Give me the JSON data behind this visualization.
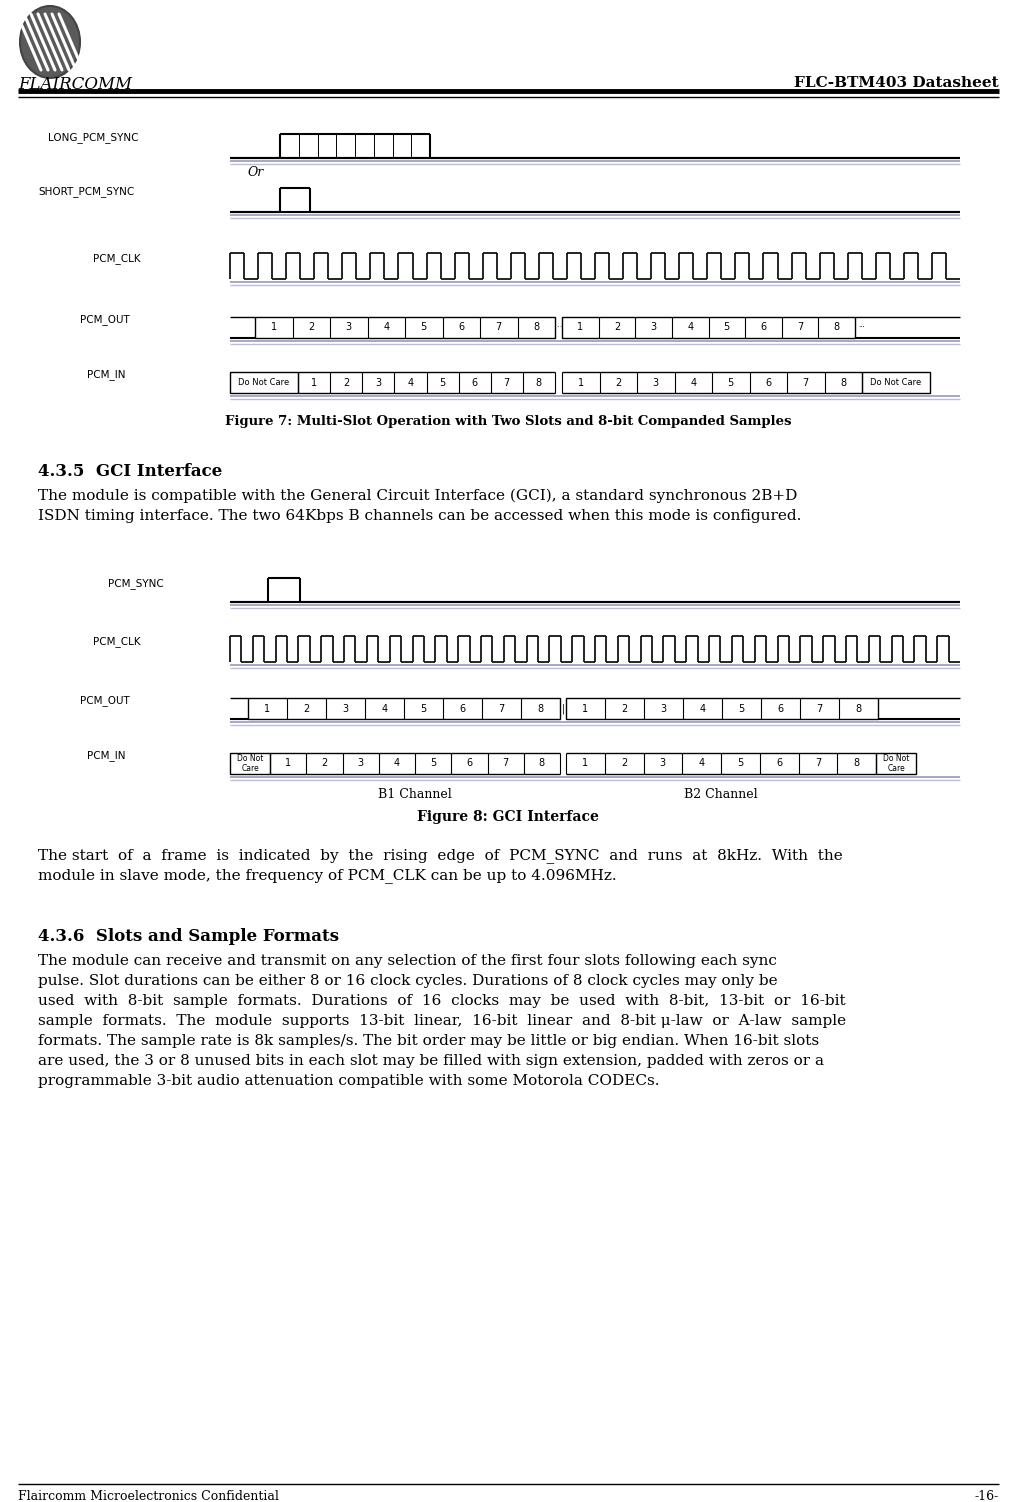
{
  "page_width": 10.17,
  "page_height": 15.02,
  "bg_color": "#ffffff",
  "header_title": "FLC-BTM403 Datasheet",
  "footer_left": "Flaircomm Microelectronics Confidential",
  "footer_right": "-16-",
  "fig7_title": "Figure 7: Multi-Slot Operation with Two Slots and 8-bit Companded Samples",
  "fig8_title": "Figure 8: GCI Interface",
  "section_435_title": "4.3.5  GCI Interface",
  "section_435_body1": "The module is compatible with the General Circuit Interface (GCI), a standard synchronous 2B+D",
  "section_435_body2": "ISDN timing interface. The two 64Kbps B channels can be accessed when this mode is configured.",
  "section_after_fig8_1": "The start  of  a  frame  is  indicated  by  the  rising  edge  of  PCM_SYNC  and  runs  at  8kHz.  With  the",
  "section_after_fig8_2": "module in slave mode, the frequency of PCM_CLK can be up to 4.096MHz.",
  "section_436_title": "4.3.6  Slots and Sample Formats",
  "section_436_lines": [
    "The module can receive and transmit on any selection of the first four slots following each sync",
    "pulse. Slot durations can be either 8 or 16 clock cycles. Durations of 8 clock cycles may only be",
    "used  with  8-bit  sample  formats.  Durations  of  16  clocks  may  be  used  with  8-bit,  13-bit  or  16-bit",
    "sample  formats.  The  module  supports  13-bit  linear,  16-bit  linear  and  8-bit μ-law  or  A-law  sample",
    "formats. The sample rate is 8k samples/s. The bit order may be little or big endian. When 16-bit slots",
    "are used, the 3 or 8 unused bits in each slot may be filled with sign extension, padded with zeros or a",
    "programmable 3-bit audio attenuation compatible with some Motorola CODECs."
  ]
}
